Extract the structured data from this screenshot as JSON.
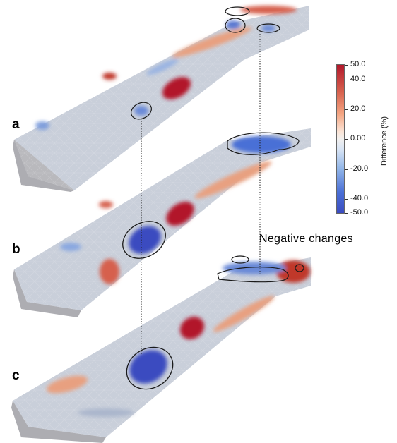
{
  "panels": [
    {
      "label": "a"
    },
    {
      "label": "b"
    },
    {
      "label": "c"
    }
  ],
  "annotation": "Negative changes",
  "colorbar": {
    "title": "Difference (%)",
    "ticks": [
      "50.0",
      "40.0",
      "20.0",
      "0.00",
      "-20.0",
      "-40.0",
      "-50.0"
    ],
    "min": -50,
    "max": 50,
    "colors": {
      "high": "#b2182b",
      "mid": "#f2f0ee",
      "low": "#3b4cc0"
    }
  }
}
